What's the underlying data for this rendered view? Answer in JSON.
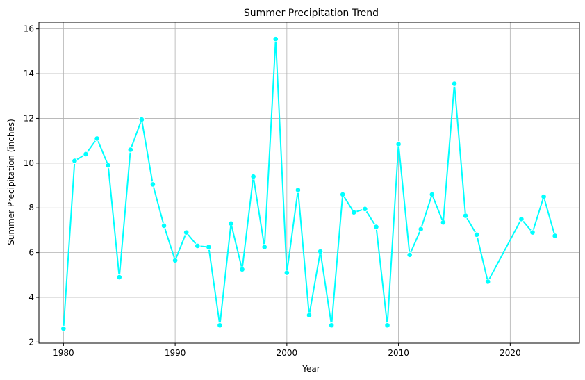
{
  "chart_data": {
    "type": "line",
    "title": "Summer Precipitation Trend",
    "xlabel": "Year",
    "ylabel": "Summer Precipitation (inches)",
    "xlim": [
      1977.8,
      2026.2
    ],
    "ylim": [
      1.95,
      16.3
    ],
    "xticks": [
      1980,
      1990,
      2000,
      2010,
      2020
    ],
    "yticks": [
      2,
      4,
      6,
      8,
      10,
      12,
      14,
      16
    ],
    "grid": true,
    "line_color": "#00ffff",
    "series": [
      {
        "x": [
          1980,
          1981,
          1982,
          1983,
          1984,
          1985,
          1986,
          1987,
          1988,
          1989,
          1990,
          1991,
          1992,
          1993,
          1994,
          1995,
          1996,
          1997,
          1998,
          1999,
          2000,
          2001,
          2002,
          2003,
          2004,
          2005,
          2006,
          2007,
          2008,
          2009,
          2010,
          2011,
          2012,
          2013,
          2014,
          2015,
          2016,
          2017,
          2018,
          2021,
          2022,
          2023,
          2024
        ],
        "y": [
          2.6,
          10.1,
          10.4,
          11.1,
          9.9,
          4.9,
          10.6,
          11.95,
          9.05,
          7.2,
          5.65,
          6.9,
          6.3,
          6.25,
          2.75,
          7.3,
          5.25,
          9.4,
          6.25,
          15.55,
          5.1,
          8.8,
          3.2,
          6.05,
          2.75,
          8.6,
          7.8,
          7.95,
          7.15,
          2.75,
          10.85,
          5.9,
          7.05,
          8.6,
          7.35,
          13.55,
          7.65,
          6.8,
          4.7,
          7.5,
          6.9,
          8.5,
          6.75
        ]
      }
    ]
  }
}
